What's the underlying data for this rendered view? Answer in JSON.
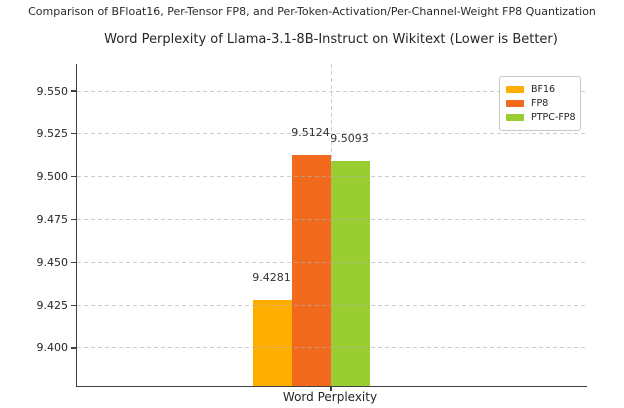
{
  "header": {
    "suptitle": "Comparison of BFloat16, Per-Tensor FP8, and Per-Token-Activation/Per-Channel-Weight FP8 Quantization"
  },
  "chart_data": {
    "type": "bar",
    "title": "Word Perplexity of Llama-3.1-8B-Instruct on Wikitext (Lower is Better)",
    "categories": [
      "Word Perplexity"
    ],
    "series": [
      {
        "name": "BF16",
        "values": [
          9.4281
        ],
        "label": "9.4281",
        "color": "#FFAE00"
      },
      {
        "name": "FP8",
        "values": [
          9.5124
        ],
        "label": "9.5124",
        "color": "#F26A1E"
      },
      {
        "name": "PTPC-FP8",
        "values": [
          9.5093
        ],
        "label": "9.5093",
        "color": "#9ACD32"
      }
    ],
    "ylabel": "",
    "xlabel": "",
    "ylim": [
      9.3778,
      9.5658
    ],
    "yticks": [
      "9.400",
      "9.425",
      "9.450",
      "9.475",
      "9.500",
      "9.525",
      "9.550"
    ],
    "ytick_values": [
      9.4,
      9.425,
      9.45,
      9.475,
      9.5,
      9.525,
      9.55
    ],
    "grid": true,
    "grid_style": "dashed",
    "legend_position": "upper right",
    "axis_color": "#3f3f3f",
    "gridline_color": "#c9c9c9",
    "background_color": "#ffffff"
  }
}
